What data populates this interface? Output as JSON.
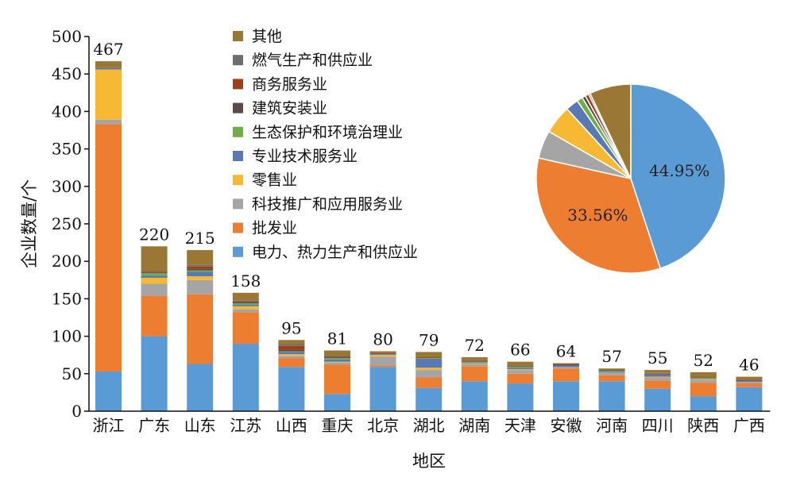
{
  "chart_data": {
    "type": "bar",
    "stacked": true,
    "xlabel": "地区",
    "ylabel": "企业数量/个",
    "ylim": [
      0,
      500
    ],
    "yticks": [
      0,
      50,
      100,
      150,
      200,
      250,
      300,
      350,
      400,
      450,
      500
    ],
    "categories": [
      "浙江",
      "广东",
      "山东",
      "江苏",
      "山西",
      "重庆",
      "北京",
      "湖北",
      "湖南",
      "天津",
      "安徽",
      "河南",
      "四川",
      "陕西",
      "广西"
    ],
    "totals": [
      467,
      220,
      215,
      158,
      95,
      81,
      80,
      79,
      72,
      66,
      64,
      57,
      55,
      52,
      46
    ],
    "legend_position": "top-center",
    "series": [
      {
        "name": "电力、热力生产和供应业",
        "color": "#5b9bd5",
        "values": [
          53,
          100,
          63,
          90,
          59,
          23,
          59,
          31,
          40,
          37,
          40,
          40,
          30,
          20,
          32
        ]
      },
      {
        "name": "批发业",
        "color": "#ed7d31",
        "values": [
          330,
          54,
          93,
          42,
          12,
          39,
          2,
          14,
          20,
          13,
          17,
          8,
          11,
          18,
          5
        ]
      },
      {
        "name": "科技推广和应用服务业",
        "color": "#a5a5a5",
        "values": [
          6,
          16,
          19,
          4,
          3,
          3,
          12,
          10,
          3,
          5,
          2,
          4,
          4,
          4,
          2
        ]
      },
      {
        "name": "零售业",
        "color": "#f7b934",
        "values": [
          67,
          8,
          5,
          4,
          2,
          1,
          2,
          3,
          1,
          1,
          0,
          0,
          1,
          1,
          0
        ]
      },
      {
        "name": "专业技术服务业",
        "color": "#5a78b4",
        "values": [
          2,
          3,
          6,
          2,
          3,
          3,
          1,
          12,
          1,
          2,
          2,
          1,
          3,
          1,
          1
        ]
      },
      {
        "name": "生态保护和环境治理业",
        "color": "#70ad47",
        "values": [
          0,
          3,
          2,
          2,
          1,
          2,
          0,
          1,
          1,
          1,
          0,
          1,
          0,
          1,
          0
        ]
      },
      {
        "name": "建筑安装业",
        "color": "#5c4a4a",
        "values": [
          0,
          1,
          2,
          2,
          2,
          1,
          1,
          0,
          1,
          1,
          1,
          1,
          0,
          0,
          1
        ]
      },
      {
        "name": "商务服务业",
        "color": "#9e3f17",
        "values": [
          0,
          1,
          3,
          1,
          5,
          1,
          1,
          1,
          1,
          0,
          1,
          0,
          1,
          1,
          1
        ]
      },
      {
        "name": "燃气生产和供应业",
        "color": "#6d6d6d",
        "values": [
          0,
          1,
          2,
          1,
          2,
          1,
          0,
          0,
          0,
          0,
          0,
          0,
          1,
          0,
          0
        ]
      },
      {
        "name": "其他",
        "color": "#9b7736",
        "values": [
          9,
          33,
          20,
          10,
          6,
          7,
          2,
          7,
          4,
          6,
          1,
          2,
          4,
          6,
          4
        ]
      }
    ],
    "pie": {
      "type": "pie",
      "labels": [
        "电力、热力生产和供应业",
        "批发业",
        "科技推广和应用服务业",
        "零售业",
        "专业技术服务业",
        "生态保护和环境治理业",
        "建筑安装业",
        "商务服务业",
        "燃气生产和供应业",
        "其他"
      ],
      "values": [
        44.95,
        33.56,
        4.8,
        4.9,
        2.2,
        1.0,
        0.6,
        0.6,
        0.3,
        7.09
      ],
      "colors": [
        "#5b9bd5",
        "#ed7d31",
        "#a5a5a5",
        "#f7b934",
        "#5a78b4",
        "#70ad47",
        "#5c4a4a",
        "#9e3f17",
        "#6d6d6d",
        "#9b7736"
      ],
      "shown_labels": [
        "44.95%",
        "33.56%",
        "",
        "",
        "",
        "",
        "",
        "",
        "",
        ""
      ]
    }
  }
}
